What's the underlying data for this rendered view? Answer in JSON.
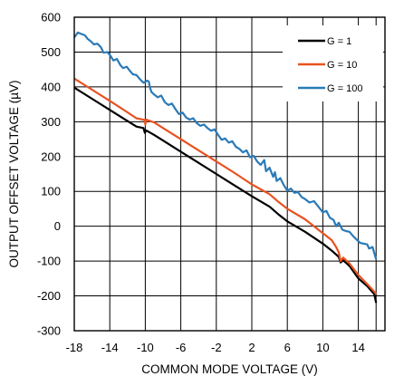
{
  "chart_data": {
    "type": "line",
    "title": "",
    "xlabel": "COMMON MODE VOLTAGE (V)",
    "ylabel": "OUTPUT OFFSET VOLTAGE (µV)",
    "xlim": [
      -18,
      17
    ],
    "ylim": [
      -300,
      600
    ],
    "x_ticks": [
      -18,
      -14,
      -10,
      -6,
      -2,
      2,
      6,
      10,
      14
    ],
    "x_tick_labels": [
      "-18",
      "-14",
      "-10",
      "-6",
      "-2",
      "2",
      "6",
      "10",
      "14"
    ],
    "y_ticks": [
      -300,
      -200,
      -100,
      0,
      100,
      200,
      300,
      400,
      500,
      600
    ],
    "y_tick_labels": [
      "-300",
      "-200",
      "-100",
      "0",
      "100",
      "200",
      "300",
      "400",
      "500",
      "600"
    ],
    "grid": true,
    "legend_position": "top-right",
    "series": [
      {
        "name": "G = 1",
        "color": "#000000",
        "points": [
          [
            -18,
            398
          ],
          [
            -16,
            366
          ],
          [
            -14,
            334
          ],
          [
            -12,
            302
          ],
          [
            -11,
            286
          ],
          [
            -10.2,
            282
          ],
          [
            -10.05,
            268
          ],
          [
            -9.9,
            275
          ],
          [
            -9,
            262
          ],
          [
            -8,
            246
          ],
          [
            -6,
            214
          ],
          [
            -4,
            182
          ],
          [
            -2,
            150
          ],
          [
            0,
            118
          ],
          [
            2,
            86
          ],
          [
            4,
            56
          ],
          [
            5,
            34
          ],
          [
            6,
            14
          ],
          [
            8,
            -16
          ],
          [
            10,
            -50
          ],
          [
            11,
            -70
          ],
          [
            11.8,
            -88
          ],
          [
            12,
            -104
          ],
          [
            12.3,
            -98
          ],
          [
            13,
            -114
          ],
          [
            14,
            -150
          ],
          [
            15,
            -172
          ],
          [
            15.8,
            -195
          ],
          [
            16,
            -220
          ]
        ]
      },
      {
        "name": "G = 10",
        "color": "#e8521f",
        "points": [
          [
            -18,
            424
          ],
          [
            -16,
            392
          ],
          [
            -14,
            360
          ],
          [
            -12,
            327
          ],
          [
            -11,
            310
          ],
          [
            -10.05,
            305
          ],
          [
            -10,
            292
          ],
          [
            -9.9,
            306
          ],
          [
            -9,
            298
          ],
          [
            -8,
            282
          ],
          [
            -6,
            250
          ],
          [
            -4,
            218
          ],
          [
            -2,
            186
          ],
          [
            0,
            154
          ],
          [
            2,
            120
          ],
          [
            4,
            92
          ],
          [
            5,
            70
          ],
          [
            6,
            50
          ],
          [
            8,
            20
          ],
          [
            10,
            -20
          ],
          [
            11,
            -40
          ],
          [
            11.5,
            -60
          ],
          [
            11.8,
            -75
          ],
          [
            12,
            -100
          ],
          [
            12.3,
            -90
          ],
          [
            13,
            -107
          ],
          [
            14,
            -140
          ],
          [
            15,
            -166
          ],
          [
            15.8,
            -188
          ],
          [
            16,
            -195
          ]
        ]
      },
      {
        "name": "G = 100",
        "color": "#2a7ab8",
        "points": [
          [
            -18,
            542
          ],
          [
            -17.6,
            556
          ],
          [
            -17.2,
            552
          ],
          [
            -16.8,
            548
          ],
          [
            -16.5,
            538
          ],
          [
            -16.1,
            530
          ],
          [
            -15.8,
            522
          ],
          [
            -15.4,
            524
          ],
          [
            -15,
            514
          ],
          [
            -14.7,
            498
          ],
          [
            -14.3,
            500
          ],
          [
            -14,
            492
          ],
          [
            -13.6,
            476
          ],
          [
            -13.2,
            480
          ],
          [
            -12.8,
            462
          ],
          [
            -12.5,
            454
          ],
          [
            -12.1,
            458
          ],
          [
            -11.8,
            448
          ],
          [
            -11.4,
            436
          ],
          [
            -11,
            434
          ],
          [
            -10.6,
            422
          ],
          [
            -10.2,
            412
          ],
          [
            -9.8,
            418
          ],
          [
            -9.6,
            415
          ],
          [
            -9.5,
            400
          ],
          [
            -9.3,
            385
          ],
          [
            -9,
            378
          ],
          [
            -8.6,
            370
          ],
          [
            -8.2,
            375
          ],
          [
            -7.8,
            356
          ],
          [
            -7.4,
            348
          ],
          [
            -7,
            352
          ],
          [
            -6.6,
            336
          ],
          [
            -6.2,
            322
          ],
          [
            -5.8,
            326
          ],
          [
            -5.4,
            312
          ],
          [
            -5,
            306
          ],
          [
            -4.6,
            310
          ],
          [
            -4.2,
            296
          ],
          [
            -3.8,
            288
          ],
          [
            -3.4,
            292
          ],
          [
            -3,
            282
          ],
          [
            -2.6,
            274
          ],
          [
            -2.2,
            278
          ],
          [
            -1.8,
            262
          ],
          [
            -1.4,
            248
          ],
          [
            -1,
            252
          ],
          [
            -0.6,
            240
          ],
          [
            -0.2,
            244
          ],
          [
            0.2,
            228
          ],
          [
            0.6,
            222
          ],
          [
            1,
            212
          ],
          [
            1.4,
            218
          ],
          [
            1.8,
            198
          ],
          [
            2.2,
            202
          ],
          [
            2.6,
            186
          ],
          [
            3,
            176
          ],
          [
            3.4,
            190
          ],
          [
            3.6,
            158
          ],
          [
            4,
            168
          ],
          [
            4.4,
            142
          ],
          [
            4.6,
            155
          ],
          [
            4.8,
            130
          ],
          [
            5.2,
            138
          ],
          [
            5.6,
            118
          ],
          [
            6,
            102
          ],
          [
            6.4,
            108
          ],
          [
            6.8,
            96
          ],
          [
            7.2,
            98
          ],
          [
            7.6,
            84
          ],
          [
            8,
            78
          ],
          [
            8.5,
            68
          ],
          [
            9,
            72
          ],
          [
            9.5,
            56
          ],
          [
            10,
            40
          ],
          [
            10.4,
            44
          ],
          [
            10.8,
            24
          ],
          [
            11.2,
            18
          ],
          [
            11.5,
            0
          ],
          [
            11.8,
            10
          ],
          [
            12.2,
            -10
          ],
          [
            12.6,
            -14
          ],
          [
            13,
            -16
          ],
          [
            13.4,
            -28
          ],
          [
            13.8,
            -38
          ],
          [
            14.2,
            -48
          ],
          [
            14.6,
            -50
          ],
          [
            15,
            -52
          ],
          [
            15.2,
            -64
          ],
          [
            15.6,
            -60
          ],
          [
            16,
            -95
          ]
        ]
      }
    ]
  }
}
